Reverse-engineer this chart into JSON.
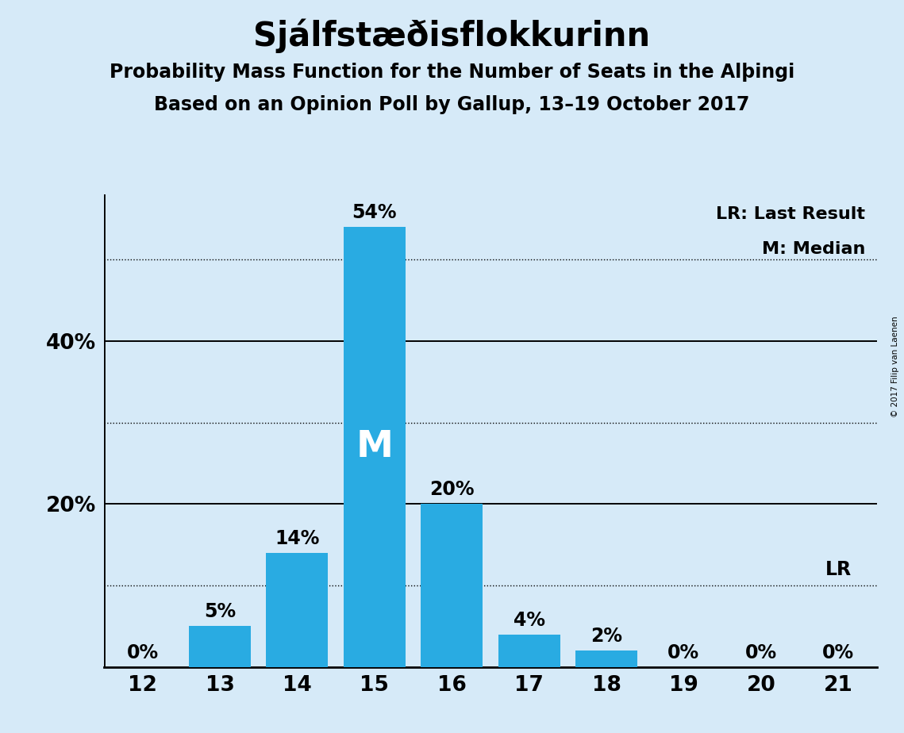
{
  "title": "Sjálfstæðisflokkurinn",
  "subtitle1": "Probability Mass Function for the Number of Seats in the Alþingi",
  "subtitle2": "Based on an Opinion Poll by Gallup, 13–19 October 2017",
  "copyright": "© 2017 Filip van Laenen",
  "seats": [
    12,
    13,
    14,
    15,
    16,
    17,
    18,
    19,
    20,
    21
  ],
  "values": [
    0,
    5,
    14,
    54,
    20,
    4,
    2,
    0,
    0,
    0
  ],
  "bar_color": "#29abe2",
  "background_color": "#d6eaf8",
  "median_seat": 15,
  "last_result_seat": 21,
  "legend_lr": "LR: Last Result",
  "legend_m": "M: Median",
  "solid_ticks": [
    20,
    40
  ],
  "dotted_ticks": [
    10,
    30,
    50
  ],
  "ylim": [
    0,
    58
  ],
  "title_fontsize": 30,
  "subtitle_fontsize": 17,
  "tick_fontsize": 19,
  "bar_label_fontsize": 17,
  "legend_fontsize": 16,
  "median_fontsize": 34
}
